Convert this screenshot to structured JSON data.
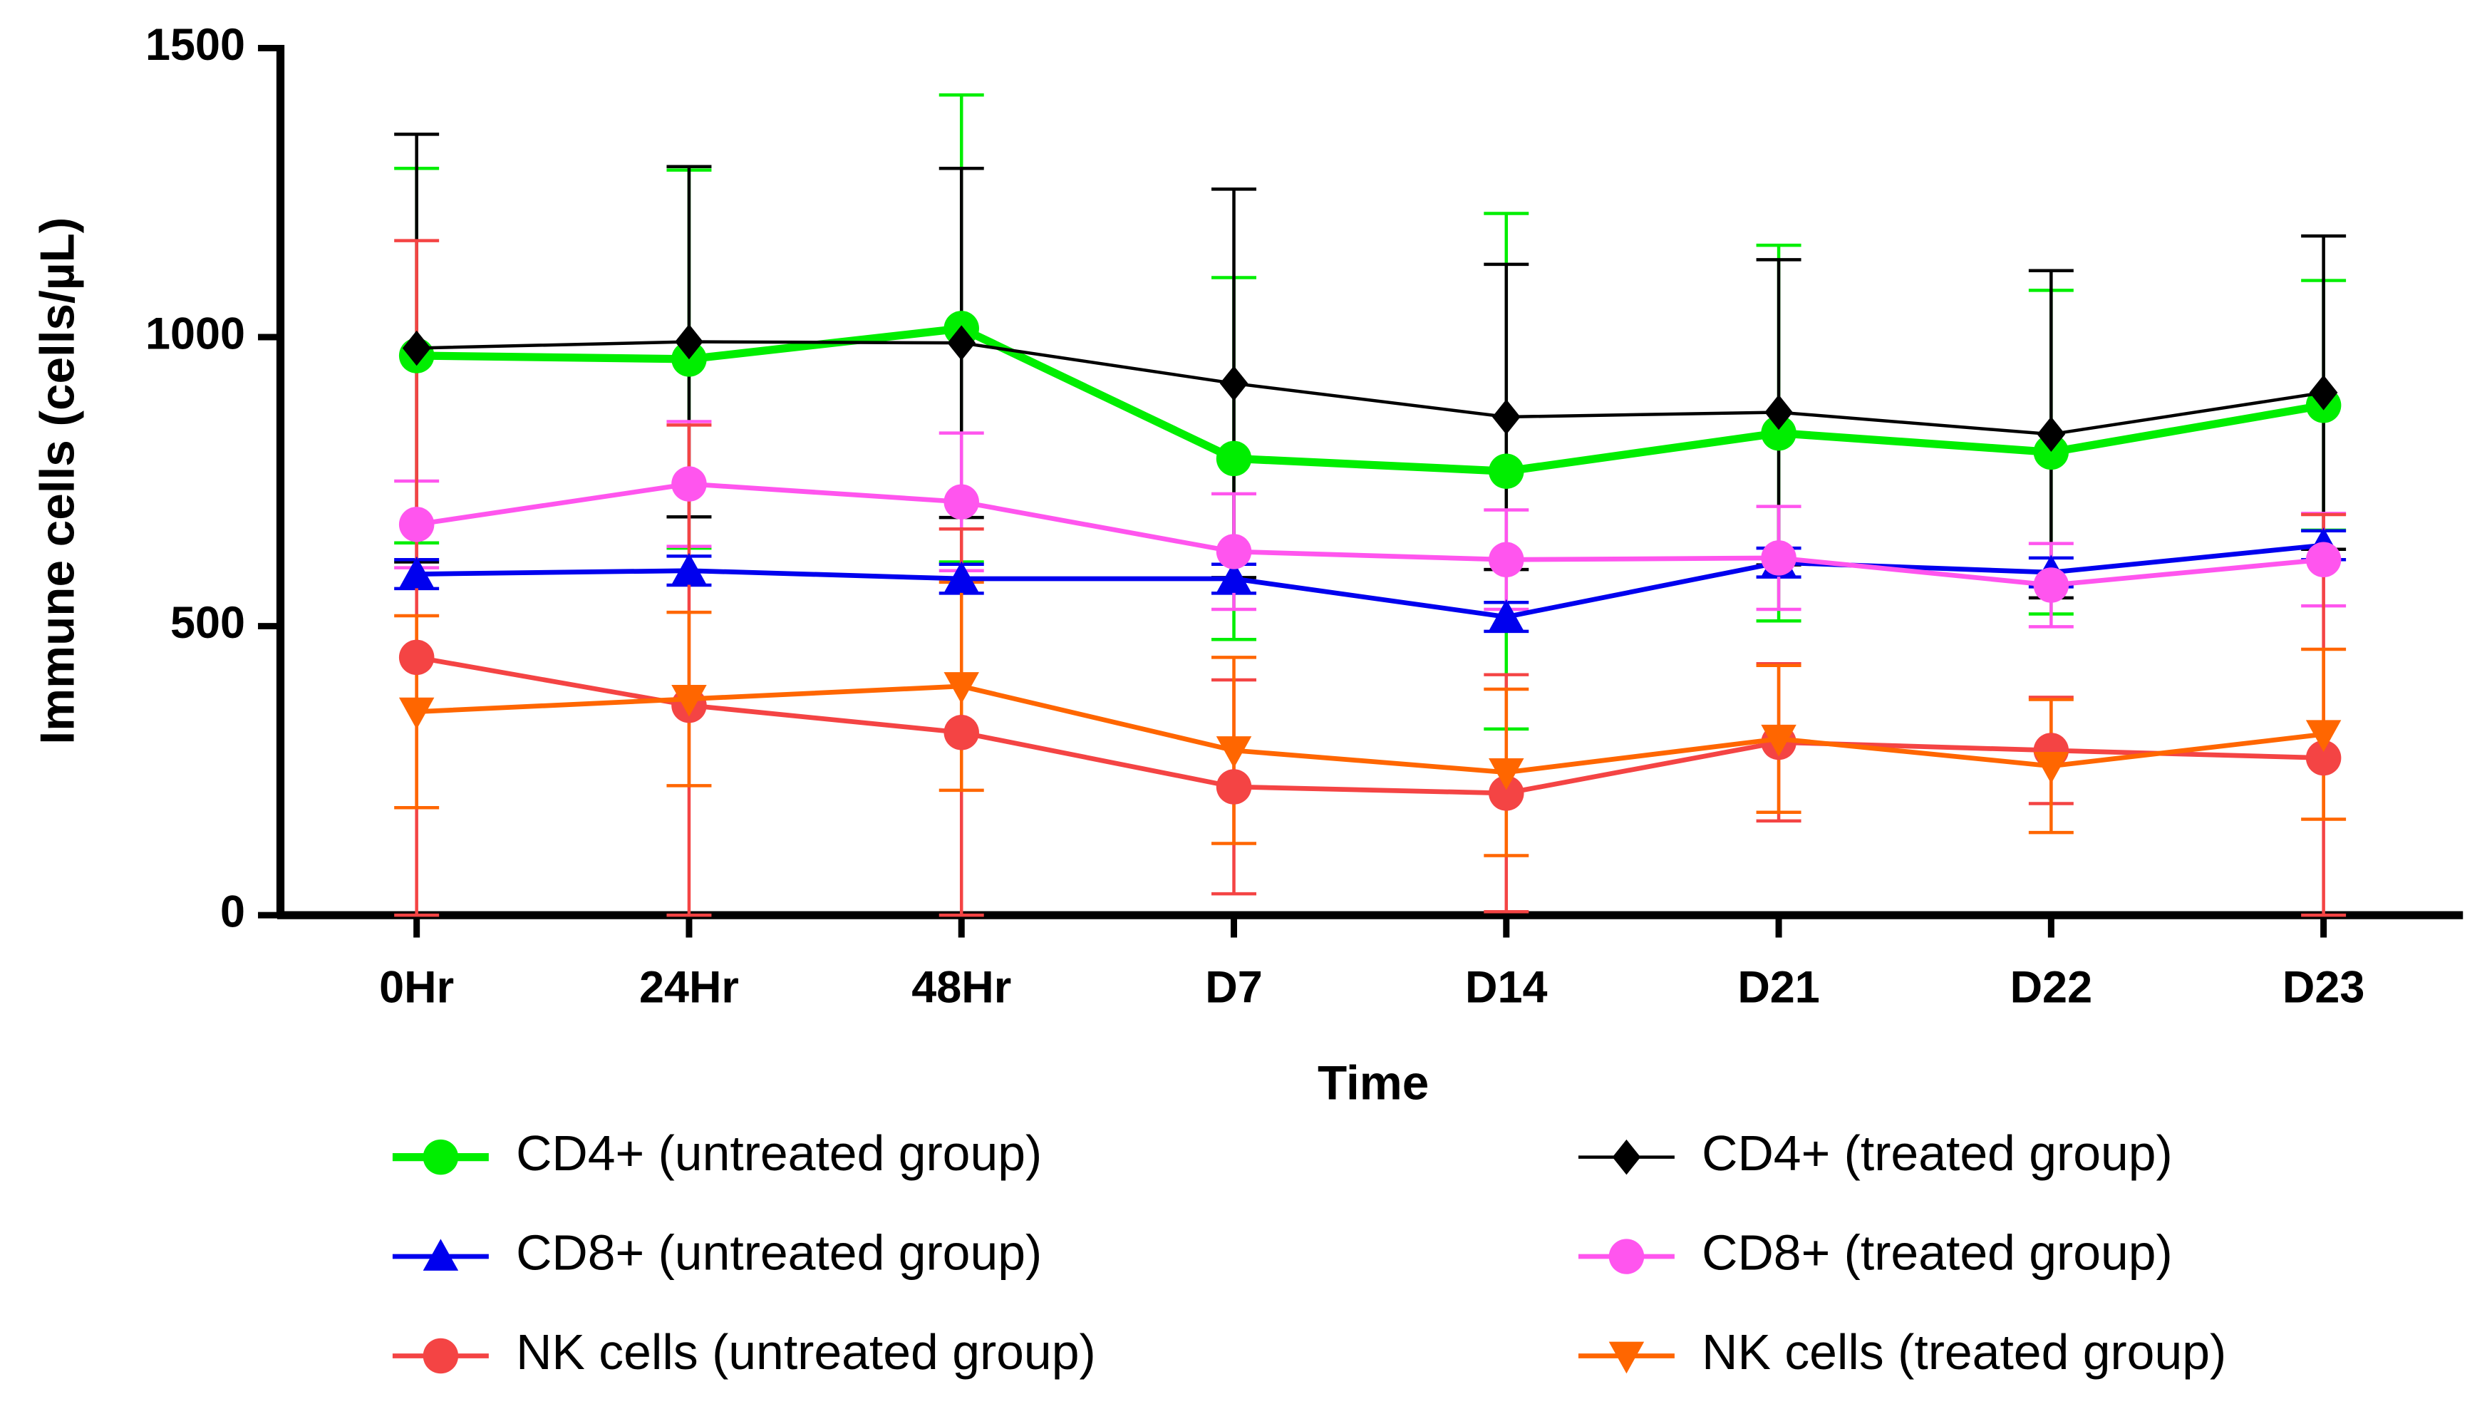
{
  "chart_data": {
    "type": "line",
    "y_label": "Immune cells (cells/µL)",
    "x_label": "Time",
    "categories": [
      "0Hr",
      "24Hr",
      "48Hr",
      "D7",
      "D14",
      "D21",
      "D22",
      "D23"
    ],
    "ylim": [
      0,
      1500
    ],
    "yticks": [
      0,
      500,
      1000,
      1500
    ],
    "series": [
      {
        "name": "CD4+ (untreated group)",
        "color": "#00ee00",
        "marker": "circle",
        "width": 5,
        "values": [
          968,
          962,
          1015,
          790,
          768,
          834,
          801,
          882
        ],
        "errors": [
          324,
          327,
          404,
          313,
          446,
          325,
          280,
          216
        ]
      },
      {
        "name": "CD4+ (treated group)",
        "color": "#000000",
        "marker": "diamond",
        "width": 2,
        "values": [
          981,
          992,
          990,
          920,
          862,
          870,
          832,
          904
        ],
        "errors": [
          370,
          303,
          302,
          336,
          264,
          264,
          283,
          271
        ]
      },
      {
        "name": "CD8+ (untreated group)",
        "color": "#0000ee",
        "marker": "triangle-up",
        "width": 3,
        "values": [
          590,
          596,
          582,
          582,
          516,
          610,
          593,
          640
        ],
        "errors": [
          25,
          25,
          25,
          25,
          25,
          25,
          25,
          25
        ]
      },
      {
        "name": "CD8+ (treated group)",
        "color": "#ff55ee",
        "marker": "circle",
        "width": 3,
        "values": [
          676,
          746,
          715,
          629,
          615,
          618,
          571,
          615
        ],
        "errors": [
          75,
          108,
          119,
          100,
          86,
          89,
          72,
          80
        ]
      },
      {
        "name": "NK cells (untreated group)",
        "color": "#f44444",
        "marker": "circle",
        "width": 3,
        "values": [
          446,
          363,
          316,
          222,
          211,
          299,
          285,
          272
        ],
        "errors": [
          721,
          485,
          352,
          185,
          205,
          136,
          92,
          421
        ]
      },
      {
        "name": "NK cells (treated group)",
        "color": "#ff6600",
        "marker": "triangle-down",
        "width": 3,
        "values": [
          352,
          374,
          396,
          285,
          247,
          305,
          258,
          313
        ],
        "errors": [
          166,
          150,
          180,
          161,
          144,
          127,
          115,
          147
        ]
      }
    ]
  }
}
